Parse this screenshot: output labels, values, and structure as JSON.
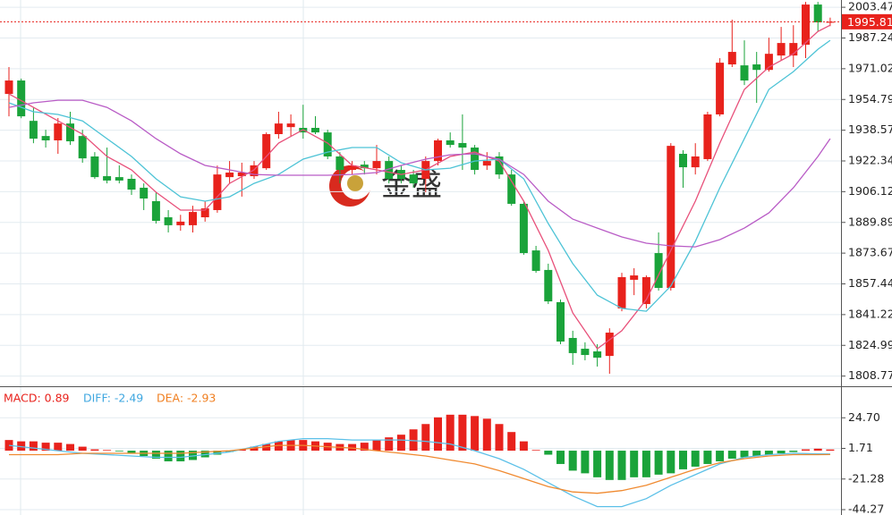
{
  "watermark": "金盛",
  "chart_data": [
    {
      "type": "candlestick",
      "ylim": [
        1803.4,
        2007.3
      ],
      "yticks": [
        2003.47,
        1987.24,
        1971.02,
        1954.79,
        1938.57,
        1922.34,
        1906.12,
        1889.89,
        1873.67,
        1857.44,
        1841.22,
        1824.99,
        1808.77
      ],
      "grid": true,
      "up_color": "#e8221c",
      "down_color": "#1aa33a",
      "last_price": 1995.81,
      "open": [
        1957.7,
        1964.8,
        1943.5,
        1935.5,
        1933.2,
        1942.1,
        1935.5,
        1924.7,
        1914.3,
        1913.8,
        1912.9,
        1908.2,
        1901.1,
        1892.6,
        1888.4,
        1888.4,
        1892.6,
        1896.4,
        1913.8,
        1914.3,
        1914.3,
        1918.5,
        1936.5,
        1940.2,
        1939.8,
        1939.8,
        1937.4,
        1924.7,
        1917.6,
        1920.4,
        1918.5,
        1922.3,
        1917.6,
        1915.2,
        1912.9,
        1922.3,
        1933.2,
        1931.8,
        1929.4,
        1919.9,
        1924.7,
        1915.2,
        1899.7,
        1875.1,
        1864.8,
        1847.8,
        1828.9,
        1823.2,
        1821.8,
        1819.4,
        1844.5,
        1859.6,
        1846.8,
        1873.7,
        1855.3,
        1926.1,
        1919.0,
        1923.3,
        1946.9,
        1973.3,
        1972.8,
        1973.3,
        1970.4,
        1978.0,
        1978.0,
        1983.7,
        2004.9,
        1995.3
      ],
      "high": [
        1971.9,
        1965.8,
        1950.6,
        1938.8,
        1945.0,
        1948.3,
        1938.8,
        1927.0,
        1929.4,
        1920.0,
        1915.2,
        1910.5,
        1905.8,
        1896.4,
        1893.9,
        1898.7,
        1901.1,
        1919.9,
        1922.3,
        1921.4,
        1922.3,
        1937.4,
        1948.3,
        1946.9,
        1952.0,
        1946.0,
        1938.8,
        1927.0,
        1922.3,
        1922.3,
        1930.8,
        1924.7,
        1920.0,
        1917.6,
        1924.7,
        1934.1,
        1937.4,
        1946.9,
        1930.8,
        1927.0,
        1927.0,
        1917.6,
        1901.1,
        1877.5,
        1868.1,
        1849.2,
        1832.7,
        1826.6,
        1825.6,
        1834.0,
        1863.3,
        1865.7,
        1861.9,
        1884.6,
        1931.7,
        1928.0,
        1931.7,
        1948.3,
        1976.6,
        1996.9,
        1986.0,
        1979.9,
        1987.4,
        1993.1,
        1994.0,
        2006.3,
        2006.3,
        1998.0
      ],
      "low": [
        1945.9,
        1944.9,
        1931.7,
        1929.4,
        1926.1,
        1930.8,
        1921.4,
        1912.9,
        1910.5,
        1910.5,
        1904.4,
        1896.4,
        1889.3,
        1884.6,
        1885.5,
        1884.6,
        1890.3,
        1895.0,
        1910.5,
        1903.5,
        1912.9,
        1917.6,
        1934.1,
        1935.5,
        1934.1,
        1936.5,
        1923.3,
        1910.5,
        1915.2,
        1915.2,
        1915.2,
        1910.5,
        1910.5,
        1908.2,
        1905.8,
        1920.0,
        1929.4,
        1917.6,
        1915.2,
        1917.6,
        1912.9,
        1898.7,
        1872.8,
        1863.3,
        1846.8,
        1825.6,
        1814.7,
        1817.1,
        1813.8,
        1810.0,
        1843.0,
        1851.5,
        1844.5,
        1853.9,
        1853.9,
        1908.2,
        1915.2,
        1922.3,
        1945.9,
        1971.9,
        1962.4,
        1953.0,
        1969.5,
        1975.2,
        1971.9,
        1976.6,
        1990.7,
        1993.5
      ],
      "close": [
        1964.8,
        1945.9,
        1934.1,
        1933.2,
        1942.1,
        1932.7,
        1923.7,
        1913.8,
        1912.0,
        1912.0,
        1907.2,
        1902.5,
        1890.7,
        1888.4,
        1890.3,
        1895.4,
        1897.3,
        1915.2,
        1916.2,
        1916.2,
        1920.0,
        1936.5,
        1942.1,
        1942.1,
        1937.4,
        1937.4,
        1924.7,
        1917.6,
        1920.0,
        1918.5,
        1922.3,
        1912.9,
        1912.9,
        1910.5,
        1922.3,
        1933.2,
        1930.8,
        1929.4,
        1917.6,
        1922.3,
        1915.2,
        1899.7,
        1873.7,
        1864.3,
        1848.2,
        1827.0,
        1820.9,
        1819.9,
        1818.5,
        1831.7,
        1861.0,
        1861.9,
        1861.0,
        1855.3,
        1930.3,
        1919.0,
        1924.7,
        1946.9,
        1974.2,
        1979.9,
        1964.8,
        1970.4,
        1978.9,
        1984.6,
        1984.6,
        2004.9,
        1995.5,
        1995.81
      ],
      "series": [
        {
          "color": "#e8507a",
          "x": [
            0,
            2,
            4,
            6,
            8,
            10,
            12,
            14,
            16,
            18,
            20,
            22,
            24,
            26,
            28,
            30,
            32,
            34,
            36,
            38,
            40,
            42,
            44,
            46,
            48,
            50,
            52,
            54,
            56,
            58,
            60,
            62,
            64,
            66,
            67
          ],
          "values": [
            1957.7,
            1950.6,
            1943.5,
            1936.5,
            1924.7,
            1917.6,
            1905.8,
            1896.4,
            1896.4,
            1910.5,
            1917.6,
            1931.8,
            1938.8,
            1931.8,
            1920.0,
            1917.6,
            1915.2,
            1917.6,
            1924.7,
            1927.0,
            1922.3,
            1901.1,
            1875.1,
            1842.1,
            1823.2,
            1832.7,
            1849.2,
            1875.1,
            1901.1,
            1931.8,
            1960.1,
            1971.9,
            1978.9,
            1990.7,
            1994.0
          ]
        },
        {
          "color": "#4dc3d6",
          "x": [
            0,
            2,
            4,
            6,
            8,
            10,
            12,
            14,
            16,
            18,
            20,
            22,
            24,
            26,
            28,
            30,
            32,
            34,
            36,
            38,
            40,
            42,
            44,
            46,
            48,
            50,
            52,
            54,
            56,
            58,
            60,
            62,
            64,
            66,
            67
          ],
          "values": [
            1953.0,
            1948.3,
            1946.9,
            1943.5,
            1934.1,
            1924.7,
            1912.9,
            1903.4,
            1901.1,
            1903.4,
            1910.5,
            1915.2,
            1923.3,
            1927.0,
            1929.4,
            1929.4,
            1921.4,
            1917.6,
            1918.5,
            1922.3,
            1923.3,
            1912.9,
            1889.3,
            1868.1,
            1851.5,
            1844.5,
            1843.0,
            1856.3,
            1879.9,
            1908.2,
            1934.1,
            1960.1,
            1969.5,
            1981.3,
            1986.0
          ]
        },
        {
          "color": "#b95cc6",
          "x": [
            0,
            2,
            4,
            6,
            8,
            10,
            12,
            14,
            16,
            18,
            20,
            22,
            24,
            26,
            28,
            30,
            32,
            34,
            36,
            38,
            40,
            42,
            44,
            46,
            48,
            50,
            52,
            54,
            56,
            58,
            60,
            62,
            64,
            66,
            67
          ],
          "values": [
            1950.6,
            1953.0,
            1954.4,
            1954.4,
            1950.6,
            1943.5,
            1934.1,
            1926.1,
            1920.0,
            1917.6,
            1915.2,
            1914.8,
            1914.8,
            1914.8,
            1915.2,
            1916.2,
            1920.0,
            1923.3,
            1925.6,
            1926.1,
            1923.3,
            1915.2,
            1901.1,
            1891.6,
            1886.9,
            1882.2,
            1878.9,
            1877.5,
            1877.0,
            1880.8,
            1886.9,
            1894.9,
            1908.2,
            1924.7,
            1934.1
          ]
        }
      ]
    },
    {
      "type": "macd",
      "ylim": [
        -48.3,
        47.7
      ],
      "yticks": [
        {
          "value": 24.7,
          "label": "24.70"
        },
        1.71,
        -21.28,
        -44.27
      ],
      "grid": true,
      "legend": [
        {
          "text": "MACD: 0.89",
          "color": "#e8221c"
        },
        {
          "text": "DIFF: -2.49",
          "color": "#3fa7e0"
        },
        {
          "text": "DEA: -2.93",
          "color": "#f07f20"
        }
      ],
      "up_color": "#e8221c",
      "down_color": "#1aa33a",
      "values": [
        8,
        7,
        7,
        6,
        6,
        5,
        3,
        1,
        0.5,
        -0.5,
        -2,
        -4,
        -6,
        -8,
        -8,
        -7,
        -5,
        -3,
        -1,
        1,
        3,
        5,
        7,
        8,
        8,
        7,
        6,
        5,
        5,
        6,
        8,
        10,
        12,
        16,
        20,
        25,
        27,
        27,
        26,
        24,
        20,
        14,
        7,
        0.5,
        -3,
        -10,
        -15,
        -17,
        -20,
        -22,
        -22,
        -20,
        -20,
        -18,
        -17,
        -14,
        -12,
        -10,
        -8,
        -6,
        -5,
        -4,
        -3,
        -2,
        -1,
        1,
        1.5,
        0.89
      ],
      "series": [
        {
          "color": "#5bc0e8",
          "x": [
            0,
            2,
            4,
            6,
            8,
            10,
            12,
            14,
            16,
            18,
            20,
            22,
            24,
            26,
            28,
            30,
            32,
            34,
            36,
            38,
            40,
            42,
            44,
            46,
            48,
            50,
            52,
            54,
            56,
            58,
            60,
            62,
            64,
            66,
            67
          ],
          "values": [
            4,
            2,
            0,
            -2,
            -3,
            -4,
            -5,
            -5,
            -3,
            -1,
            3,
            7,
            9,
            9,
            8,
            8,
            8,
            7,
            5,
            0,
            -6,
            -14,
            -24,
            -34,
            -42,
            -42,
            -36,
            -26,
            -18,
            -10,
            -5,
            -3,
            -2,
            -2.4,
            -2.49
          ]
        },
        {
          "color": "#f08a30",
          "x": [
            0,
            2,
            4,
            6,
            8,
            10,
            12,
            14,
            16,
            18,
            20,
            22,
            24,
            26,
            28,
            30,
            32,
            34,
            36,
            38,
            40,
            42,
            44,
            46,
            48,
            50,
            52,
            54,
            56,
            58,
            60,
            62,
            64,
            66,
            67
          ],
          "values": [
            -3,
            -3,
            -3,
            -2,
            -2,
            -2,
            -2,
            -2,
            -1,
            0,
            2,
            4,
            4,
            3,
            2,
            0,
            -2,
            -4,
            -7,
            -10,
            -15,
            -21,
            -27,
            -31,
            -32,
            -30,
            -26,
            -20,
            -14,
            -9,
            -6,
            -4,
            -3,
            -3,
            -2.93
          ]
        }
      ]
    }
  ]
}
